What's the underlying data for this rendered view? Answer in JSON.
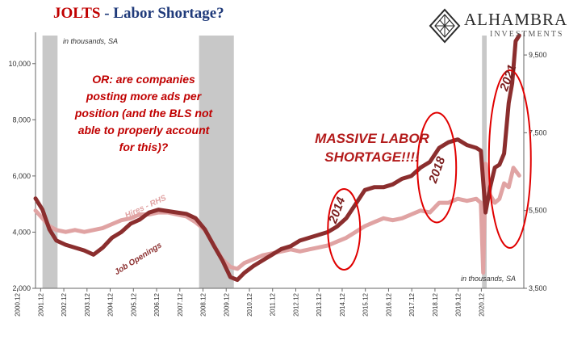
{
  "header": {
    "title_main": "JOLTS",
    "title_rest": " - Labor Shortage?"
  },
  "logo": {
    "name": "ALHAMBRA",
    "sub": "INVESTMENTS",
    "icon": "diamond-lattice-icon"
  },
  "notes": {
    "units_top": "in thousands, SA",
    "units_bottom": "in thousands, SA"
  },
  "annotations": {
    "callout": [
      "OR: are companies",
      "posting more ads per",
      "position (and the BLS not",
      "able to properly account",
      "for this)?"
    ],
    "shortage": [
      "MASSIVE LABOR",
      "SHORTAGE!!!!"
    ],
    "year_2014": "2014",
    "year_2018": "2018",
    "year_2021": "2021"
  },
  "colors": {
    "openings": "#8b2e2e",
    "hires": "#e0a3a3",
    "recession": "#c8c8c8",
    "circle": "#e00000"
  },
  "chart_data": {
    "type": "line",
    "title": "JOLTS - Labor Shortage?",
    "ylim_left": [
      2000,
      11000
    ],
    "yticks_left": [
      "2,000",
      "4,000",
      "6,000",
      "8,000",
      "10,000"
    ],
    "ylim_right": [
      3500,
      10000
    ],
    "yticks_right": [
      "3,500",
      "5,500",
      "7,500",
      "9,500"
    ],
    "xticks": [
      "2000.12",
      "2001.12",
      "2002.12",
      "2003.12",
      "2004.12",
      "2005.12",
      "2006.12",
      "2007.12",
      "2008.12",
      "2009.12",
      "2010.12",
      "2011.12",
      "2012.12",
      "2013.12",
      "2014.12",
      "2015.12",
      "2016.12",
      "2017.12",
      "2018.12",
      "2019.12",
      "2020.12"
    ],
    "recessions": [
      [
        2001.2,
        2001.85
      ],
      [
        2007.95,
        2009.45
      ],
      [
        2020.15,
        2020.35
      ]
    ],
    "series": [
      {
        "name": "Job Openings",
        "axis": "left",
        "x": [
          2000.9,
          2001.2,
          2001.5,
          2001.8,
          2002.2,
          2002.6,
          2003.0,
          2003.4,
          2003.8,
          2004.2,
          2004.6,
          2005.0,
          2005.4,
          2005.8,
          2006.2,
          2006.6,
          2007.0,
          2007.4,
          2007.8,
          2008.2,
          2008.6,
          2008.95,
          2009.3,
          2009.6,
          2009.9,
          2010.3,
          2010.7,
          2011.1,
          2011.5,
          2011.9,
          2012.3,
          2012.7,
          2013.1,
          2013.5,
          2013.9,
          2014.3,
          2014.7,
          2015.1,
          2015.5,
          2015.9,
          2016.3,
          2016.7,
          2017.1,
          2017.5,
          2017.9,
          2018.3,
          2018.7,
          2019.1,
          2019.5,
          2019.9,
          2020.1,
          2020.3,
          2020.5,
          2020.7,
          2020.9,
          2021.1,
          2021.3,
          2021.45,
          2021.6,
          2021.75
        ],
        "values": [
          5200,
          4800,
          4100,
          3700,
          3550,
          3450,
          3350,
          3200,
          3450,
          3800,
          4000,
          4300,
          4450,
          4700,
          4800,
          4750,
          4700,
          4650,
          4500,
          4100,
          3500,
          3000,
          2400,
          2300,
          2550,
          2800,
          3000,
          3200,
          3400,
          3500,
          3700,
          3800,
          3900,
          4000,
          4200,
          4500,
          5000,
          5500,
          5600,
          5600,
          5700,
          5900,
          6000,
          6300,
          6500,
          7000,
          7200,
          7300,
          7100,
          7000,
          6900,
          4700,
          5600,
          6300,
          6400,
          6800,
          8600,
          9300,
          10800,
          11000
        ]
      },
      {
        "name": "Hires - RHS",
        "axis": "right",
        "x": [
          2000.9,
          2001.2,
          2001.5,
          2001.8,
          2002.2,
          2002.6,
          2003.0,
          2003.4,
          2003.8,
          2004.2,
          2004.6,
          2005.0,
          2005.4,
          2005.8,
          2006.2,
          2006.6,
          2007.0,
          2007.4,
          2007.8,
          2008.2,
          2008.6,
          2008.95,
          2009.3,
          2009.6,
          2009.9,
          2010.3,
          2010.7,
          2011.1,
          2011.5,
          2011.9,
          2012.3,
          2012.7,
          2013.1,
          2013.5,
          2013.9,
          2014.3,
          2014.7,
          2015.1,
          2015.5,
          2015.9,
          2016.3,
          2016.7,
          2017.1,
          2017.5,
          2017.9,
          2018.3,
          2018.7,
          2019.1,
          2019.5,
          2019.9,
          2020.1,
          2020.2,
          2020.3,
          2020.5,
          2020.7,
          2020.9,
          2021.1,
          2021.3,
          2021.5,
          2021.75
        ],
        "values": [
          5500,
          5300,
          5100,
          5000,
          4950,
          5000,
          4950,
          5000,
          5050,
          5150,
          5250,
          5300,
          5400,
          5400,
          5450,
          5450,
          5400,
          5350,
          5200,
          5000,
          4600,
          4250,
          4050,
          4000,
          4150,
          4250,
          4350,
          4400,
          4450,
          4500,
          4450,
          4500,
          4550,
          4600,
          4700,
          4800,
          4950,
          5100,
          5200,
          5300,
          5250,
          5300,
          5400,
          5500,
          5450,
          5700,
          5700,
          5800,
          5750,
          5800,
          5700,
          3900,
          6700,
          5900,
          5700,
          5800,
          6200,
          6100,
          6600,
          6400
        ]
      }
    ]
  }
}
